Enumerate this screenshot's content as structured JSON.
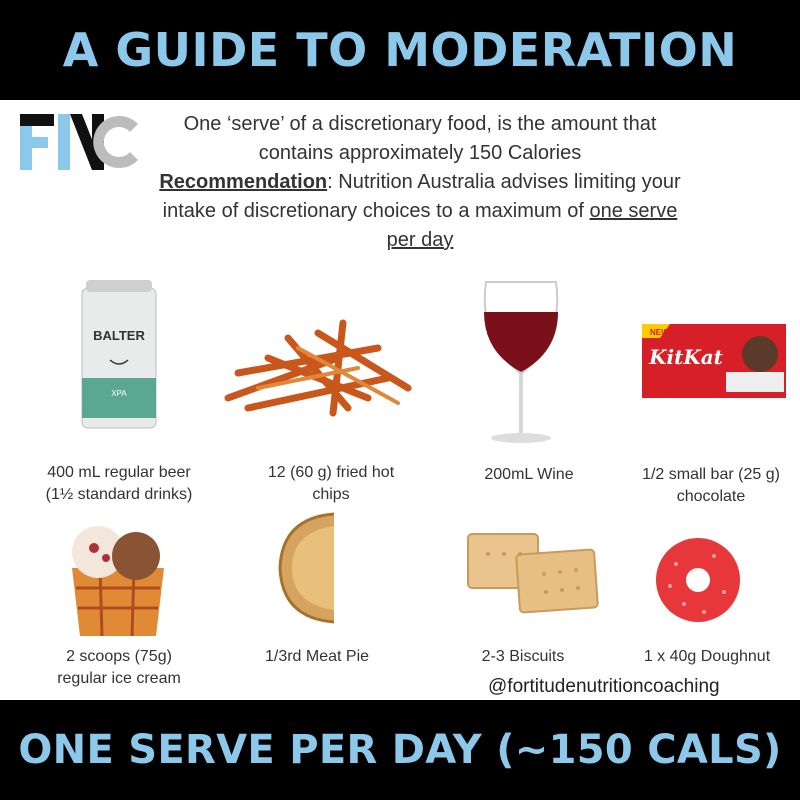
{
  "header": {
    "title": "A GUIDE TO MODERATION"
  },
  "logo": {
    "text": "FNC",
    "colors": {
      "blue": "#8cc8ea",
      "black": "#111111",
      "grey": "#bcbcbc"
    }
  },
  "intro": {
    "line1": "One ‘serve’ of a discretionary food, is the amount that contains approximately 150 Calories",
    "rec_label": "Recommendation",
    "rec_text": ": Nutrition Australia advises limiting your intake of discretionary choices to a maximum of ",
    "rec_underline": "one serve per day"
  },
  "items": [
    {
      "caption_1": "400 mL regular beer",
      "caption_2": "(1½ standard drinks)",
      "icon": "beer-can-icon",
      "can_brand": "BALTER",
      "can_type": "XPA"
    },
    {
      "caption_1": "12 (60 g) fried hot",
      "caption_2": "chips",
      "icon": "fried-chips-icon"
    },
    {
      "caption_1": "200mL Wine",
      "caption_2": "",
      "icon": "wine-glass-icon"
    },
    {
      "caption_1": "1/2 small bar (25 g)",
      "caption_2": "chocolate",
      "icon": "chocolate-bar-icon",
      "bar_brand": "KitKat",
      "bar_badge": "NEW"
    },
    {
      "caption_1": "2 scoops (75g)",
      "caption_2": "regular ice cream",
      "icon": "ice-cream-icon"
    },
    {
      "caption_1": "1/3rd Meat Pie",
      "caption_2": "",
      "icon": "meat-pie-icon"
    },
    {
      "caption_1": "2-3 Biscuits",
      "caption_2": "",
      "icon": "biscuits-icon"
    },
    {
      "caption_1": "1 x 40g Doughnut",
      "caption_2": "",
      "icon": "doughnut-icon"
    }
  ],
  "handle": "@fortitudenutritioncoaching",
  "footer": {
    "title": "ONE SERVE PER DAY (~150 CALS)"
  },
  "colors": {
    "banner": "#000000",
    "accent": "#8cc8ea",
    "text": "#333333"
  }
}
